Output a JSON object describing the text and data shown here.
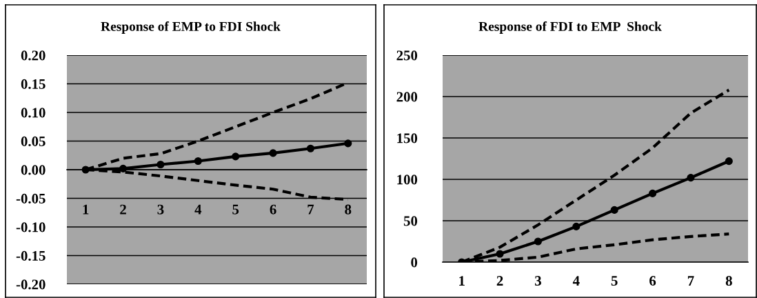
{
  "chart_data": [
    {
      "type": "line",
      "title": "Response of EMP to FDI Shock",
      "categories": [
        "1",
        "2",
        "3",
        "4",
        "5",
        "6",
        "7",
        "8"
      ],
      "series": [
        {
          "color": "#000000",
          "marker": "circle",
          "line_style": "solid",
          "values": [
            0,
            0.002,
            0.009,
            0.015,
            0.023,
            0.029,
            0.037,
            0.046
          ]
        },
        {
          "color": "#000000",
          "marker": "none",
          "line_style": "dashed",
          "values": [
            0,
            0.02,
            0.028,
            0.05,
            0.075,
            0.1,
            0.124,
            0.152
          ]
        },
        {
          "color": "#000000",
          "marker": "none",
          "line_style": "dashed",
          "values": [
            0,
            -0.004,
            -0.011,
            -0.019,
            -0.027,
            -0.034,
            -0.048,
            -0.052
          ]
        }
      ],
      "ylim": [
        -0.2,
        0.2
      ],
      "yticks": [
        {
          "value": -0.2,
          "label": "-0.20"
        },
        {
          "value": -0.15,
          "label": "-0.15"
        },
        {
          "value": -0.1,
          "label": "-0.10"
        },
        {
          "value": -0.05,
          "label": "-0.05"
        },
        {
          "value": 0,
          "label": "0.00"
        },
        {
          "value": 0.05,
          "label": "0.05"
        },
        {
          "value": 0.1,
          "label": "0.10"
        },
        {
          "value": 0.15,
          "label": "0.15"
        },
        {
          "value": 0.2,
          "label": "0.20"
        }
      ],
      "grid": "y"
    },
    {
      "type": "line",
      "title": "Response of FDI to EMP  Shock",
      "categories": [
        "1",
        "2",
        "3",
        "4",
        "5",
        "6",
        "7",
        "8"
      ],
      "series": [
        {
          "color": "#000000",
          "marker": "circle",
          "line_style": "solid",
          "values": [
            0,
            10,
            25,
            43,
            63,
            83,
            102,
            122
          ]
        },
        {
          "color": "#000000",
          "marker": "none",
          "line_style": "dashed",
          "values": [
            0,
            18,
            45,
            75,
            105,
            138,
            180,
            208
          ]
        },
        {
          "color": "#000000",
          "marker": "none",
          "line_style": "dashed",
          "values": [
            0,
            2,
            6,
            16,
            21,
            27,
            31,
            34
          ]
        }
      ],
      "ylim": [
        0,
        250
      ],
      "yticks": [
        0,
        50,
        100,
        150,
        200,
        250
      ],
      "grid": "y"
    }
  ]
}
